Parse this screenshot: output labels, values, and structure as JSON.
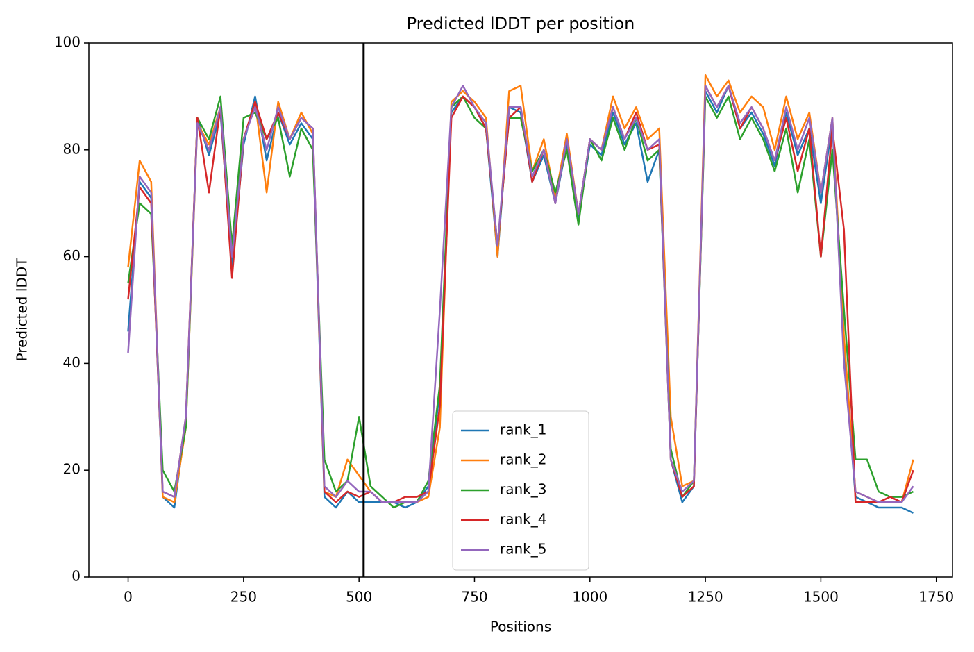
{
  "chart_data": {
    "type": "line",
    "title": "Predicted lDDT per position",
    "xlabel": "Positions",
    "ylabel": "Predicted lDDT",
    "x": [
      0,
      25,
      50,
      75,
      100,
      125,
      150,
      175,
      200,
      225,
      250,
      275,
      300,
      325,
      350,
      375,
      400,
      425,
      450,
      475,
      500,
      525,
      550,
      575,
      600,
      625,
      650,
      675,
      700,
      725,
      750,
      775,
      800,
      825,
      850,
      875,
      900,
      925,
      950,
      975,
      1000,
      1025,
      1050,
      1075,
      1100,
      1125,
      1150,
      1175,
      1200,
      1225,
      1250,
      1275,
      1300,
      1325,
      1350,
      1375,
      1400,
      1425,
      1450,
      1475,
      1500,
      1525,
      1550,
      1575,
      1600,
      1625,
      1650,
      1675,
      1700
    ],
    "series": [
      {
        "name": "rank_1",
        "color": "#1f77b4",
        "values": [
          46,
          74,
          71,
          15,
          13,
          29,
          86,
          79,
          87,
          58,
          81,
          90,
          78,
          87,
          81,
          85,
          82,
          15,
          13,
          16,
          14,
          14,
          14,
          14,
          13,
          14,
          17,
          35,
          87,
          90,
          88,
          84,
          60,
          88,
          87,
          74,
          79,
          70,
          81,
          67,
          81,
          79,
          87,
          81,
          85,
          74,
          80,
          22,
          14,
          17,
          91,
          87,
          92,
          84,
          87,
          83,
          77,
          87,
          79,
          84,
          70,
          85,
          42,
          15,
          14,
          13,
          13,
          13,
          12
        ]
      },
      {
        "name": "rank_2",
        "color": "#ff7f0e",
        "values": [
          58,
          78,
          74,
          15,
          14,
          28,
          85,
          81,
          88,
          62,
          82,
          89,
          72,
          89,
          82,
          87,
          83,
          16,
          15,
          22,
          19,
          16,
          14,
          14,
          14,
          14,
          15,
          28,
          89,
          91,
          89,
          86,
          60,
          91,
          92,
          76,
          82,
          71,
          83,
          68,
          82,
          80,
          90,
          84,
          88,
          82,
          84,
          30,
          17,
          18,
          94,
          90,
          93,
          87,
          90,
          88,
          80,
          90,
          82,
          87,
          72,
          86,
          45,
          16,
          15,
          14,
          14,
          14,
          22
        ]
      },
      {
        "name": "rank_3",
        "color": "#2ca02c",
        "values": [
          55,
          70,
          68,
          20,
          16,
          28,
          86,
          82,
          90,
          62,
          86,
          87,
          82,
          86,
          75,
          84,
          80,
          22,
          16,
          18,
          30,
          17,
          15,
          13,
          14,
          14,
          18,
          36,
          88,
          90,
          86,
          84,
          62,
          86,
          86,
          76,
          80,
          72,
          80,
          66,
          82,
          78,
          86,
          80,
          86,
          78,
          80,
          24,
          15,
          18,
          90,
          86,
          90,
          82,
          86,
          82,
          76,
          84,
          72,
          82,
          60,
          80,
          50,
          22,
          22,
          16,
          15,
          15,
          16
        ]
      },
      {
        "name": "rank_4",
        "color": "#d62728",
        "values": [
          52,
          73,
          70,
          16,
          15,
          30,
          86,
          72,
          88,
          56,
          82,
          89,
          82,
          87,
          82,
          86,
          84,
          16,
          14,
          16,
          15,
          16,
          14,
          14,
          15,
          15,
          16,
          32,
          86,
          90,
          88,
          84,
          62,
          86,
          88,
          74,
          80,
          70,
          82,
          68,
          82,
          80,
          88,
          82,
          87,
          80,
          81,
          22,
          15,
          17,
          92,
          88,
          92,
          84,
          88,
          84,
          78,
          86,
          76,
          84,
          60,
          84,
          65,
          14,
          14,
          14,
          15,
          14,
          20
        ]
      },
      {
        "name": "rank_5",
        "color": "#9467bd",
        "values": [
          42,
          75,
          72,
          16,
          15,
          30,
          85,
          80,
          88,
          60,
          82,
          88,
          80,
          88,
          82,
          86,
          84,
          17,
          15,
          18,
          16,
          16,
          14,
          14,
          14,
          14,
          16,
          50,
          88,
          92,
          88,
          85,
          62,
          88,
          88,
          75,
          80,
          70,
          82,
          68,
          82,
          80,
          88,
          82,
          86,
          80,
          82,
          22,
          16,
          18,
          92,
          88,
          92,
          85,
          88,
          84,
          78,
          88,
          80,
          86,
          72,
          86,
          40,
          16,
          15,
          14,
          14,
          14,
          17
        ]
      }
    ],
    "vlines": [
      510
    ],
    "vline_color": "#000000",
    "xlim": [
      -85,
      1785
    ],
    "xticks": [
      0,
      250,
      500,
      750,
      1000,
      1250,
      1500,
      1750
    ],
    "ylim": [
      0,
      100
    ],
    "yticks": [
      0,
      20,
      40,
      60,
      80,
      100
    ],
    "legend": "lower center"
  }
}
